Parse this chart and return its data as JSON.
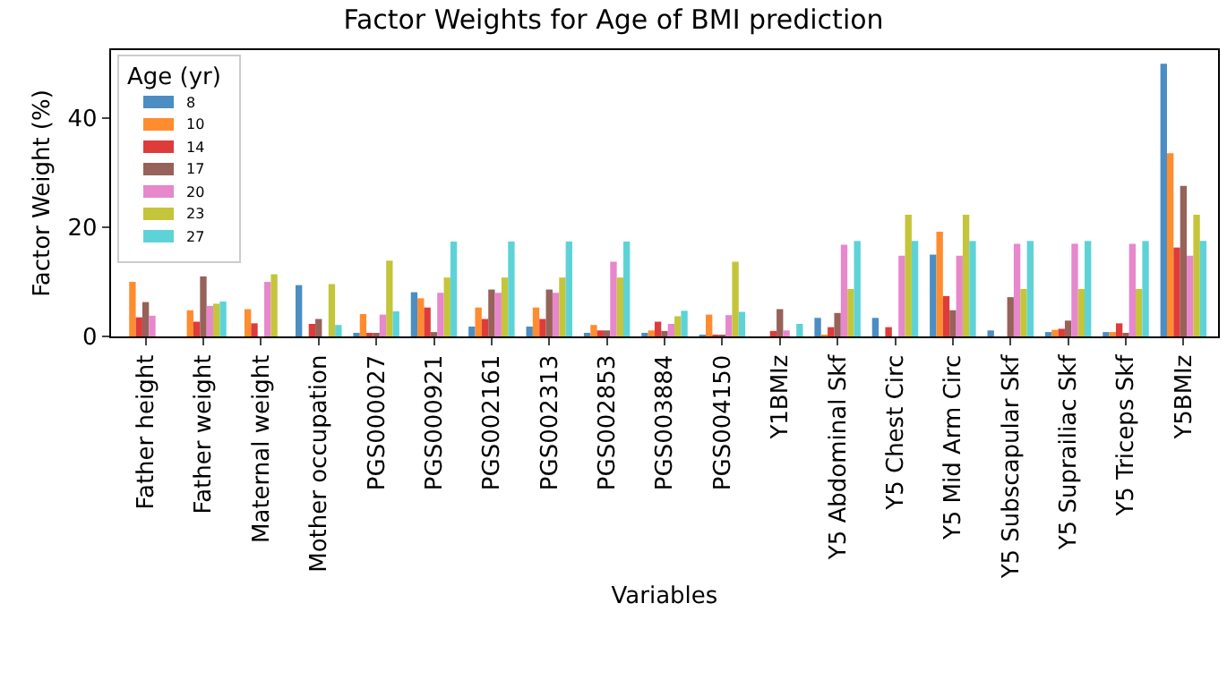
{
  "chart_data": {
    "type": "bar",
    "title": "Factor Weights for Age of BMI prediction",
    "xlabel": "Variables",
    "ylabel": "Factor Weight (%)",
    "legend_title": "Age (yr)",
    "legend": "top left",
    "grid": false,
    "categories": [
      "Father height",
      "Father weight",
      "Maternal weight",
      "Mother occupation",
      "PGS000027",
      "PGS000921",
      "PGS002161",
      "PGS002313",
      "PGS002853",
      "PGS003884",
      "PGS004150",
      "Y1BMIz",
      "Y5 Abdominal Skf",
      "Y5 Chest Circ",
      "Y5 Mid Arm Circ",
      "Y5 Subscapular Skf",
      "Y5 Suprailiac Skf",
      "Y5 Triceps Skf",
      "Y5BMIz"
    ],
    "ylim": [
      0,
      52.5
    ],
    "yticks": [
      0,
      20,
      40
    ],
    "series": [
      {
        "name": "8",
        "color": "#4c8dc3",
        "values": [
          0,
          0,
          0,
          9.4,
          0.4,
          8.1,
          1.8,
          1.8,
          0.5,
          0.4,
          0.3,
          0,
          3.4,
          3.4,
          15,
          1.1,
          0.8,
          0.8,
          50
        ]
      },
      {
        "name": "10",
        "color": "#ff8c2e",
        "values": [
          10,
          4.8,
          5,
          0,
          4.1,
          7,
          5.3,
          5.3,
          2.1,
          1.1,
          4,
          0,
          0.3,
          0,
          19.2,
          0,
          1.2,
          0.8,
          33.6
        ]
      },
      {
        "name": "14",
        "color": "#de3b3b",
        "values": [
          3.5,
          2.7,
          2.4,
          2.3,
          0.4,
          5.3,
          3.2,
          3.2,
          1.1,
          2.7,
          0.3,
          1,
          1.7,
          1.7,
          7.4,
          0,
          1.4,
          2.4,
          16.3
        ]
      },
      {
        "name": "17",
        "color": "#966259",
        "values": [
          6.3,
          11,
          0,
          3.2,
          0.4,
          0.8,
          8.6,
          8.6,
          1.1,
          1,
          0.3,
          5,
          4.3,
          0,
          4.8,
          7.2,
          2.9,
          0.4,
          27.6
        ]
      },
      {
        "name": "20",
        "color": "#e787cc",
        "values": [
          3.8,
          5.6,
          10,
          0,
          4,
          8,
          8,
          8,
          13.7,
          2.3,
          3.9,
          1.1,
          16.8,
          14.8,
          14.8,
          17,
          17,
          17,
          14.8
        ]
      },
      {
        "name": "23",
        "color": "#c4c53a",
        "values": [
          0,
          6,
          11.4,
          9.6,
          13.9,
          10.8,
          10.8,
          10.8,
          10.8,
          3.7,
          13.7,
          0,
          8.7,
          22.3,
          22.3,
          8.7,
          8.7,
          8.7,
          22.3
        ]
      },
      {
        "name": "27",
        "color": "#5dd3d8",
        "values": [
          0,
          6.4,
          0,
          2.1,
          4.6,
          17.4,
          17.4,
          17.4,
          17.4,
          4.7,
          4.5,
          2.3,
          17.5,
          17.5,
          17.5,
          17.5,
          17.5,
          17.5,
          17.5
        ]
      }
    ]
  }
}
